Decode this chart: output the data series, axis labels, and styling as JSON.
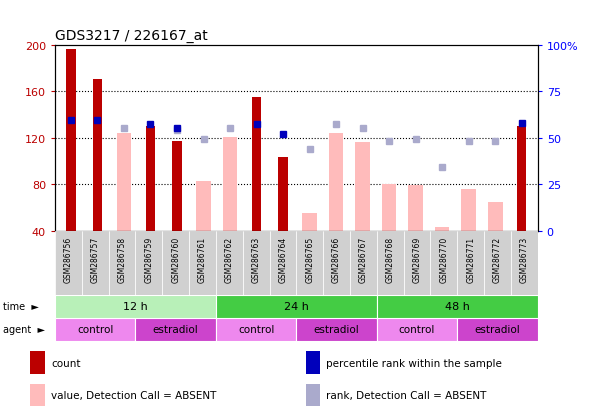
{
  "title": "GDS3217 / 226167_at",
  "samples": [
    "GSM286756",
    "GSM286757",
    "GSM286758",
    "GSM286759",
    "GSM286760",
    "GSM286761",
    "GSM286762",
    "GSM286763",
    "GSM286764",
    "GSM286765",
    "GSM286766",
    "GSM286767",
    "GSM286768",
    "GSM286769",
    "GSM286770",
    "GSM286771",
    "GSM286772",
    "GSM286773"
  ],
  "count_values": [
    196,
    170,
    null,
    130,
    117,
    null,
    null,
    155,
    103,
    null,
    null,
    null,
    null,
    null,
    null,
    null,
    null,
    130
  ],
  "absent_value_bars": [
    null,
    null,
    124,
    null,
    null,
    83,
    121,
    null,
    null,
    55,
    124,
    116,
    80,
    79,
    43,
    76,
    65,
    null
  ],
  "percentile_rank_present": [
    135,
    135,
    null,
    132,
    128,
    null,
    null,
    132,
    123,
    null,
    null,
    null,
    null,
    null,
    null,
    null,
    null,
    133
  ],
  "percentile_rank_absent": [
    null,
    null,
    128,
    null,
    127,
    119,
    128,
    null,
    null,
    110,
    132,
    128,
    117,
    119,
    95,
    117,
    117,
    null
  ],
  "time_groups": [
    {
      "label": "12 h",
      "start": 0,
      "end": 6,
      "color": "#b8f0b8"
    },
    {
      "label": "24 h",
      "start": 6,
      "end": 12,
      "color": "#44cc44"
    },
    {
      "label": "48 h",
      "start": 12,
      "end": 18,
      "color": "#44cc44"
    }
  ],
  "agent_groups": [
    {
      "label": "control",
      "start": 0,
      "end": 3,
      "color": "#ee88ee"
    },
    {
      "label": "estradiol",
      "start": 3,
      "end": 6,
      "color": "#cc44cc"
    },
    {
      "label": "control",
      "start": 6,
      "end": 9,
      "color": "#ee88ee"
    },
    {
      "label": "estradiol",
      "start": 9,
      "end": 12,
      "color": "#cc44cc"
    },
    {
      "label": "control",
      "start": 12,
      "end": 15,
      "color": "#ee88ee"
    },
    {
      "label": "estradiol",
      "start": 15,
      "end": 18,
      "color": "#cc44cc"
    }
  ],
  "ylim_left": [
    40,
    200
  ],
  "ylim_right": [
    0,
    100
  ],
  "yticks_left": [
    40,
    80,
    120,
    160,
    200
  ],
  "yticks_right": [
    0,
    25,
    50,
    75,
    100
  ],
  "count_color": "#bb0000",
  "absent_value_color": "#ffbbbb",
  "present_rank_color": "#0000bb",
  "absent_rank_color": "#aaaacc",
  "legend_items": [
    {
      "label": "count",
      "color": "#bb0000"
    },
    {
      "label": "percentile rank within the sample",
      "color": "#0000bb"
    },
    {
      "label": "value, Detection Call = ABSENT",
      "color": "#ffbbbb"
    },
    {
      "label": "rank, Detection Call = ABSENT",
      "color": "#aaaacc"
    }
  ]
}
